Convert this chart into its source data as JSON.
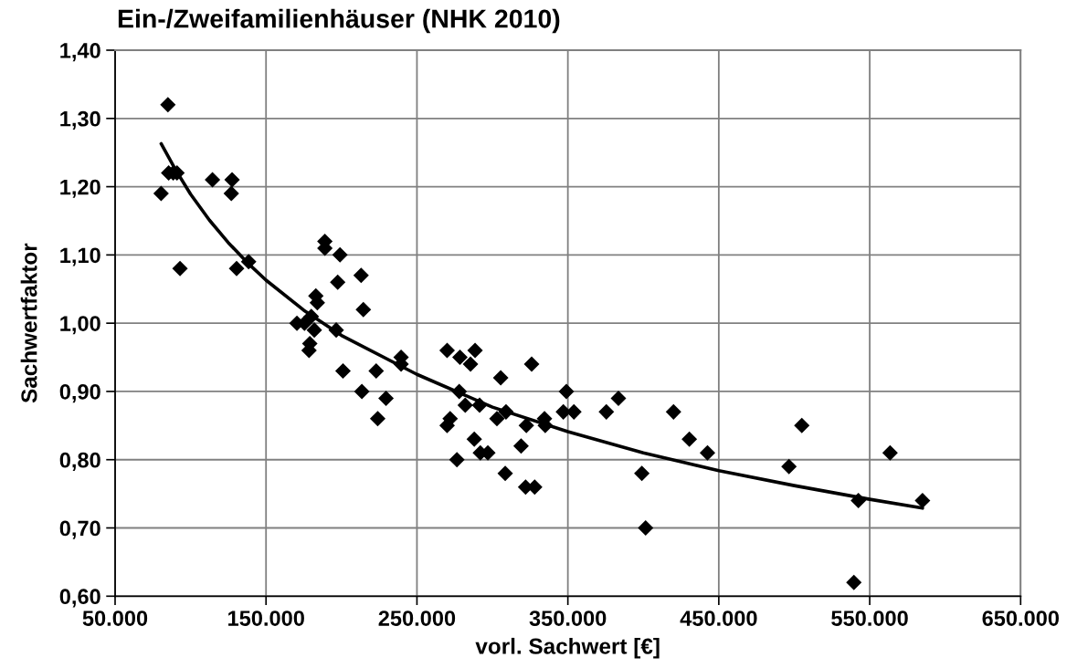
{
  "chart_data": {
    "type": "scatter",
    "title": "Ein-/Zweifamilienhäuser (NHK 2010)",
    "xlabel": "vorl. Sachwert [€]",
    "ylabel": "Sachwertfaktor",
    "xlim": [
      50000,
      650000
    ],
    "ylim": [
      0.6,
      1.4
    ],
    "xticks": [
      {
        "value": 50000,
        "label": "50.000"
      },
      {
        "value": 150000,
        "label": "150.000"
      },
      {
        "value": 250000,
        "label": "250.000"
      },
      {
        "value": 350000,
        "label": "350.000"
      },
      {
        "value": 450000,
        "label": "450.000"
      },
      {
        "value": 550000,
        "label": "550.000"
      },
      {
        "value": 650000,
        "label": "650.000"
      }
    ],
    "yticks": [
      {
        "value": 0.6,
        "label": "0,60"
      },
      {
        "value": 0.7,
        "label": "0,70"
      },
      {
        "value": 0.8,
        "label": "0,80"
      },
      {
        "value": 0.9,
        "label": "0,90"
      },
      {
        "value": 1.0,
        "label": "1,00"
      },
      {
        "value": 1.1,
        "label": "1,10"
      },
      {
        "value": 1.2,
        "label": "1,20"
      },
      {
        "value": 1.3,
        "label": "1,30"
      },
      {
        "value": 1.4,
        "label": "1,40"
      }
    ],
    "grid": true,
    "marker": "diamond",
    "series": [
      {
        "color": "#000000",
        "x": [
          80500,
          85000,
          85500,
          88500,
          91000,
          93000,
          114500,
          127500,
          127000,
          130500,
          138500,
          170500,
          175500,
          178500,
          179000,
          180000,
          182000,
          183000,
          184000,
          189000,
          189000,
          196500,
          197500,
          199000,
          201000,
          213000,
          213500,
          214500,
          223000,
          224000,
          229500,
          239500,
          239500,
          270000,
          272000,
          270000,
          276500,
          278000,
          278500,
          282000,
          285500,
          288500,
          288000,
          291500,
          292000,
          297000,
          303000,
          305500,
          308500,
          309000,
          319000,
          322500,
          322000,
          326000,
          328000,
          334500,
          335000,
          347000,
          349000,
          354000,
          375500,
          383500,
          399000,
          401500,
          420000,
          430500,
          442500,
          496500,
          505000,
          539500,
          542500,
          563500,
          585000
        ],
        "values": [
          1.19,
          1.32,
          1.22,
          1.22,
          1.22,
          1.08,
          1.21,
          1.21,
          1.19,
          1.08,
          1.09,
          1.0,
          1.0,
          0.96,
          0.97,
          1.01,
          0.99,
          1.04,
          1.03,
          1.12,
          1.11,
          0.99,
          1.06,
          1.1,
          0.93,
          1.07,
          0.9,
          1.02,
          0.93,
          0.86,
          0.89,
          0.95,
          0.94,
          0.96,
          0.86,
          0.85,
          0.8,
          0.9,
          0.95,
          0.88,
          0.94,
          0.96,
          0.83,
          0.88,
          0.81,
          0.81,
          0.86,
          0.92,
          0.78,
          0.87,
          0.82,
          0.85,
          0.76,
          0.94,
          0.76,
          0.86,
          0.85,
          0.87,
          0.9,
          0.87,
          0.87,
          0.89,
          0.78,
          0.7,
          0.87,
          0.83,
          0.81,
          0.79,
          0.85,
          0.62,
          0.74,
          0.81,
          0.74
        ]
      },
      {
        "type": "line",
        "color": "#000000",
        "marker": "none",
        "line_style": "solid",
        "x": [
          80500,
          90000,
          100000,
          112500,
          125000,
          137500,
          150000,
          175000,
          200000,
          250000,
          300000,
          350000,
          400000,
          450000,
          500000,
          550000,
          585000
        ],
        "values": [
          1.263,
          1.225,
          1.189,
          1.151,
          1.118,
          1.089,
          1.063,
          1.019,
          0.982,
          0.925,
          0.877,
          0.841,
          0.81,
          0.784,
          0.762,
          0.742,
          0.729
        ]
      }
    ]
  }
}
